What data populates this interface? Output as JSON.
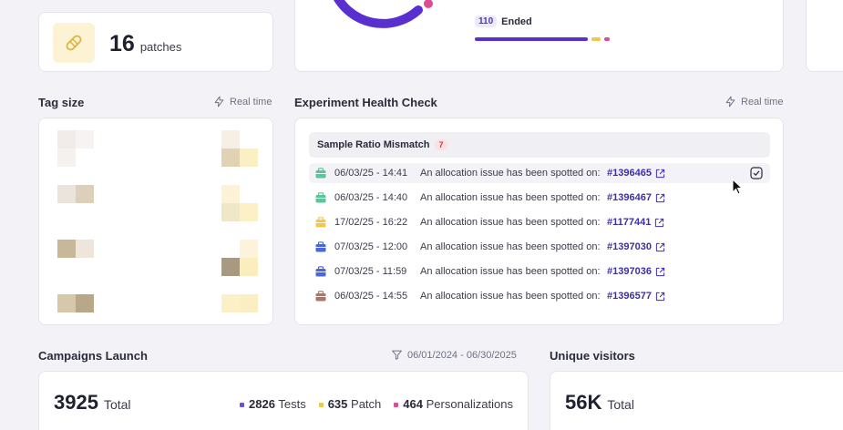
{
  "patches": {
    "count": "16",
    "label": "patches"
  },
  "status_legend": {
    "count": "110",
    "label": "Ended"
  },
  "tag_size": {
    "title": "Tag size",
    "realtime": "Real time"
  },
  "health_check": {
    "title": "Experiment Health Check",
    "realtime": "Real time",
    "group": {
      "label": "Sample Ratio Mismatch",
      "count": "7"
    },
    "rows": [
      {
        "date": "06/03/25 - 14:41",
        "message": "An allocation issue has been spotted on:",
        "id": "#1396465",
        "icon_color": "#5cc49a"
      },
      {
        "date": "06/03/25 - 14:40",
        "message": "An allocation issue has been spotted on:",
        "id": "#1396467",
        "icon_color": "#5cc49a"
      },
      {
        "date": "17/02/25 - 16:22",
        "message": "An allocation issue has been spotted on:",
        "id": "#1177441",
        "icon_color": "#f0c84a"
      },
      {
        "date": "07/03/25 - 12:00",
        "message": "An allocation issue has been spotted on:",
        "id": "#1397030",
        "icon_color": "#4a67d8"
      },
      {
        "date": "07/03/25 - 11:59",
        "message": "An allocation issue has been spotted on:",
        "id": "#1397036",
        "icon_color": "#4a67d8"
      },
      {
        "date": "06/03/25 - 14:55",
        "message": "An allocation issue has been spotted on:",
        "id": "#1396577",
        "icon_color": "#a07a6a"
      }
    ]
  },
  "campaigns": {
    "title": "Campaigns Launch",
    "date_range": "06/01/2024 - 06/30/2025",
    "total": "3925",
    "total_label": "Total",
    "legend": [
      {
        "value": "2826",
        "label": "Tests",
        "color": "#6b4fd8"
      },
      {
        "value": "635",
        "label": "Patch",
        "color": "#f0c84a"
      },
      {
        "value": "464",
        "label": "Personalizations",
        "color": "#d8508f"
      }
    ]
  },
  "unique_visitors": {
    "title": "Unique visitors",
    "total": "56K",
    "total_label": "Total"
  },
  "colors": {
    "purple": "#5a2fd0",
    "pink": "#d8508f",
    "yellow": "#f0c84a"
  }
}
